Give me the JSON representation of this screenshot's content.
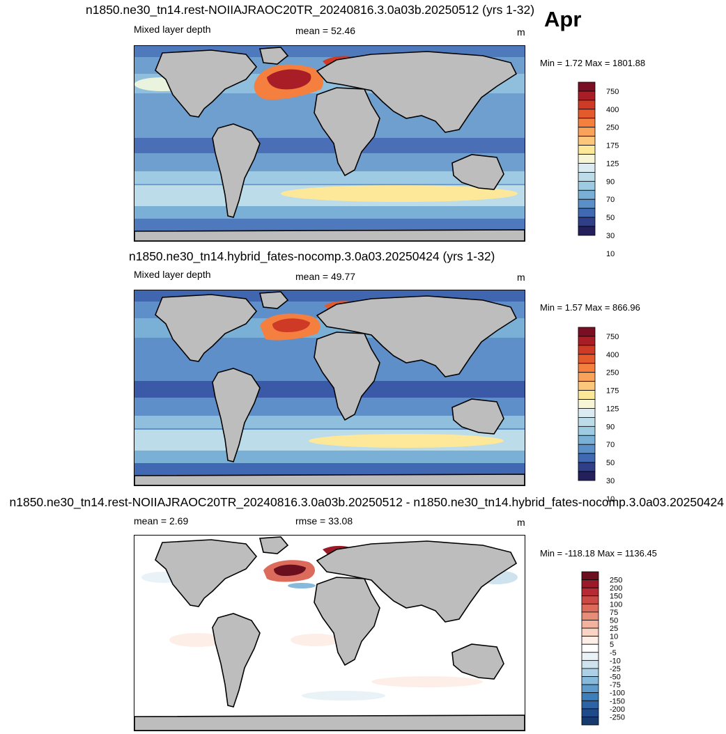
{
  "month": "Apr",
  "panels": [
    {
      "title": "n1850.ne30_tn14.rest-NOIIAJRAOC20TR_20240816.3.0a03b.20250512 (yrs 1-32)",
      "label_left": "Mixed layer depth",
      "stat_label": "mean =  52.46",
      "units": "m",
      "minmax": "Min =   1.72 Max = 1801.88",
      "colorbar": {
        "colors": [
          "#7a0f24",
          "#a81d26",
          "#cf3a26",
          "#e45a2c",
          "#f47f3f",
          "#f9a35a",
          "#fcc77a",
          "#fde89a",
          "#f6f6d6",
          "#dcebf1",
          "#bcdcea",
          "#9ccbe2",
          "#7aafd6",
          "#5a8fc7",
          "#4168b2",
          "#2f3f8a",
          "#24205c"
        ],
        "labels": [
          "750",
          "400",
          "250",
          "175",
          "125",
          "90",
          "70",
          "50",
          "30",
          "10"
        ]
      }
    },
    {
      "title": "n1850.ne30_tn14.hybrid_fates-nocomp.3.0a03.20250424 (yrs 1-32)",
      "label_left": "Mixed layer depth",
      "stat_label": "mean =  49.77",
      "units": "m",
      "minmax": "Min =   1.57 Max = 866.96",
      "colorbar": {
        "colors": [
          "#7a0f24",
          "#a81d26",
          "#cf3a26",
          "#e45a2c",
          "#f47f3f",
          "#f9a35a",
          "#fcc77a",
          "#fde89a",
          "#f6f6d6",
          "#dcebf1",
          "#bcdcea",
          "#9ccbe2",
          "#7aafd6",
          "#5a8fc7",
          "#4168b2",
          "#2f3f8a",
          "#24205c"
        ],
        "labels": [
          "750",
          "400",
          "250",
          "175",
          "125",
          "90",
          "70",
          "50",
          "30",
          "10"
        ]
      }
    },
    {
      "title": "n1850.ne30_tn14.rest-NOIIAJRAOC20TR_20240816.3.0a03b.20250512 - n1850.ne30_tn14.hybrid_fates-nocomp.3.0a03.20250424",
      "label_left": "mean =   2.69",
      "stat_label": "rmse =  33.08",
      "units": "m",
      "minmax": "Min = -118.18 Max = 1136.45",
      "colorbar": {
        "colors": [
          "#6b0f1f",
          "#9a1a29",
          "#b52a33",
          "#cc4a45",
          "#dc6b5c",
          "#e88d78",
          "#f2b29d",
          "#f9d3c4",
          "#fdeee8",
          "#ffffff",
          "#e8f2f7",
          "#cfe3ef",
          "#acd0e5",
          "#86b9da",
          "#5f9ccb",
          "#3f7fb9",
          "#2d62a3",
          "#1f4a8a",
          "#173a6e"
        ],
        "labels": [
          "250",
          "200",
          "150",
          "100",
          "75",
          "50",
          "25",
          "10",
          "5",
          "-5",
          "-10",
          "-25",
          "-50",
          "-75",
          "-100",
          "-150",
          "-200",
          "-250"
        ]
      }
    }
  ]
}
